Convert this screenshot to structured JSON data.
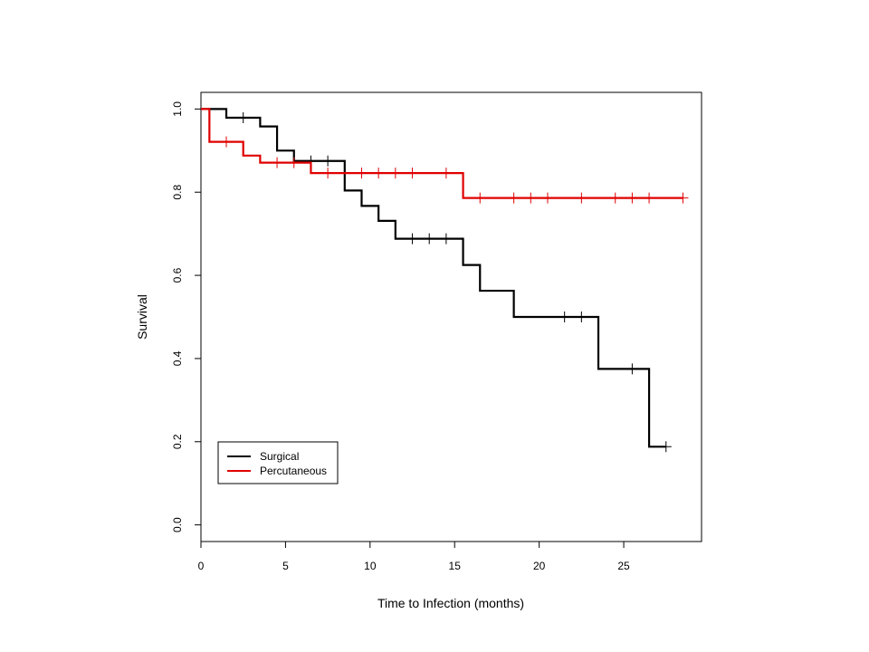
{
  "chart_data": {
    "type": "line",
    "subtype": "kaplan-meier step",
    "title": "",
    "xlabel": "Time to Infection (months)",
    "ylabel": "Survival",
    "xlim": [
      0,
      29.6
    ],
    "ylim": [
      -0.04,
      1.04
    ],
    "x_ticks": [
      0,
      5,
      10,
      15,
      20,
      25
    ],
    "x_tick_labels": [
      "0",
      "5",
      "10",
      "15",
      "20",
      "25"
    ],
    "y_ticks": [
      0.0,
      0.2,
      0.4,
      0.6,
      0.8,
      1.0
    ],
    "y_tick_labels": [
      "0.0",
      "0.2",
      "0.4",
      "0.6",
      "0.8",
      "1.0"
    ],
    "grid": false,
    "legend_position": "bottom-left",
    "series": [
      {
        "name": "Surgical",
        "color": "#000000",
        "steps": [
          [
            0,
            1.0
          ],
          [
            1.5,
            0.979
          ],
          [
            3.5,
            0.958
          ],
          [
            4.5,
            0.9
          ],
          [
            5.5,
            0.875
          ],
          [
            8.5,
            0.804
          ],
          [
            9.5,
            0.767
          ],
          [
            10.5,
            0.731
          ],
          [
            11.5,
            0.688
          ],
          [
            15.5,
            0.625
          ],
          [
            16.5,
            0.563
          ],
          [
            18.5,
            0.5
          ],
          [
            23.5,
            0.375
          ],
          [
            26.5,
            0.188
          ],
          [
            27.5,
            0.188
          ]
        ],
        "censored": [
          [
            2.5,
            0.979
          ],
          [
            6.5,
            0.875
          ],
          [
            7.5,
            0.875
          ],
          [
            12.5,
            0.688
          ],
          [
            13.5,
            0.688
          ],
          [
            14.5,
            0.688
          ],
          [
            21.5,
            0.5
          ],
          [
            22.5,
            0.5
          ],
          [
            25.5,
            0.375
          ],
          [
            27.5,
            0.188
          ]
        ]
      },
      {
        "name": "Percutaneous",
        "color": "#e00000",
        "steps": [
          [
            0,
            1.0
          ],
          [
            0.5,
            0.921
          ],
          [
            2.5,
            0.888
          ],
          [
            3.5,
            0.871
          ],
          [
            6.5,
            0.846
          ],
          [
            15.5,
            0.786
          ],
          [
            28.5,
            0.786
          ]
        ],
        "censored": [
          [
            1.5,
            0.921
          ],
          [
            4.5,
            0.871
          ],
          [
            5.5,
            0.871
          ],
          [
            7.5,
            0.846
          ],
          [
            9.5,
            0.846
          ],
          [
            10.5,
            0.846
          ],
          [
            11.5,
            0.846
          ],
          [
            12.5,
            0.846
          ],
          [
            14.5,
            0.846
          ],
          [
            16.5,
            0.786
          ],
          [
            18.5,
            0.786
          ],
          [
            19.5,
            0.786
          ],
          [
            20.5,
            0.786
          ],
          [
            22.5,
            0.786
          ],
          [
            24.5,
            0.786
          ],
          [
            25.5,
            0.786
          ],
          [
            26.5,
            0.786
          ],
          [
            28.5,
            0.786
          ]
        ]
      }
    ]
  }
}
